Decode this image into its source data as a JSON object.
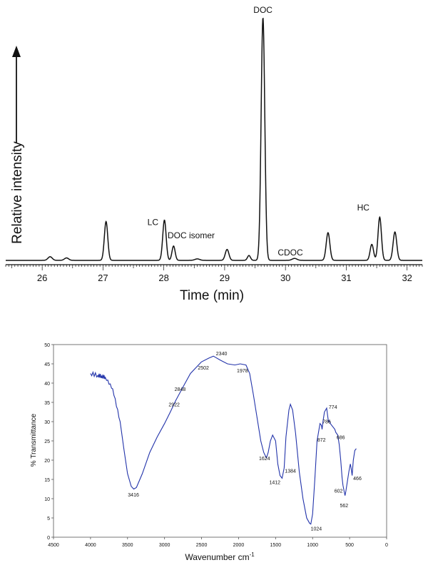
{
  "chart_data": [
    {
      "type": "line",
      "xlabel": "Time (min)",
      "ylabel": "Relative intensity",
      "xlim": [
        25.4,
        32.25
      ],
      "ylim": [
        0,
        100
      ],
      "x_ticks": [
        "26",
        "27",
        "28",
        "29",
        "30",
        "31",
        "32"
      ],
      "x_tick_values": [
        26,
        27,
        28,
        29,
        30,
        31,
        32
      ],
      "y_axis_arrow": true,
      "grid": false,
      "color": "#111111",
      "baseline": 0.9,
      "series": [
        {
          "peaks": [
            {
              "t": 26.13,
              "h": 1.5,
              "w": 0.035
            },
            {
              "t": 26.4,
              "h": 1.0,
              "w": 0.035
            },
            {
              "t": 27.05,
              "h": 16.0,
              "w": 0.028
            },
            {
              "t": 28.01,
              "h": 16.6,
              "w": 0.028
            },
            {
              "t": 28.16,
              "h": 5.9,
              "w": 0.026
            },
            {
              "t": 28.55,
              "h": 0.6,
              "w": 0.04
            },
            {
              "t": 29.04,
              "h": 4.5,
              "w": 0.03
            },
            {
              "t": 29.4,
              "h": 2.0,
              "w": 0.025
            },
            {
              "t": 29.63,
              "h": 100.0,
              "w": 0.03
            },
            {
              "t": 30.15,
              "h": 0.8,
              "w": 0.04
            },
            {
              "t": 30.7,
              "h": 11.4,
              "w": 0.03
            },
            {
              "t": 31.42,
              "h": 6.6,
              "w": 0.028
            },
            {
              "t": 31.55,
              "h": 17.8,
              "w": 0.028
            },
            {
              "t": 31.8,
              "h": 11.7,
              "w": 0.03
            }
          ]
        }
      ],
      "annotations": [
        {
          "text": "LC",
          "x": 27.82,
          "y": 15.5
        },
        {
          "text": "DOC isomer",
          "x": 28.45,
          "y": 10.0
        },
        {
          "text": "DOC",
          "x": 29.63,
          "y": 103.0
        },
        {
          "text": "CDOC",
          "x": 30.08,
          "y": 3.0
        },
        {
          "text": "HC",
          "x": 31.28,
          "y": 21.5
        }
      ]
    },
    {
      "type": "line",
      "xlabel": "Wavenumber cm",
      "xlabel_sup": "-1",
      "ylabel": "% Transmittance",
      "xlim": [
        4500,
        0
      ],
      "ylim": [
        0,
        50
      ],
      "x_ticks": [
        "4500",
        "4000",
        "3500",
        "3000",
        "2500",
        "2000",
        "1500",
        "1000",
        "500",
        "0"
      ],
      "x_tick_values": [
        4500,
        4000,
        3500,
        3000,
        2500,
        2000,
        1500,
        1000,
        500,
        0
      ],
      "y_ticks": [
        "0",
        "5",
        "10",
        "15",
        "20",
        "25",
        "30",
        "35",
        "40",
        "45",
        "50"
      ],
      "y_tick_values": [
        0,
        5,
        10,
        15,
        20,
        25,
        30,
        35,
        40,
        45,
        50
      ],
      "grid": false,
      "color": "#2233aa",
      "series": [
        {
          "x": [
            4000,
            3900,
            3850,
            3800,
            3700,
            3600,
            3550,
            3500,
            3450,
            3416,
            3380,
            3300,
            3200,
            3100,
            3000,
            2922,
            2848,
            2750,
            2650,
            2502,
            2400,
            2340,
            2250,
            2150,
            2050,
            1978,
            1900,
            1850,
            1800,
            1750,
            1700,
            1660,
            1624,
            1600,
            1570,
            1540,
            1500,
            1470,
            1440,
            1412,
            1384,
            1360,
            1320,
            1300,
            1270,
            1230,
            1180,
            1130,
            1080,
            1040,
            1024,
            1000,
            970,
            940,
            900,
            880,
            872,
            860,
            840,
            810,
            800,
            786,
            774,
            760,
            740,
            720,
            700,
            686,
            660,
            640,
            620,
            602,
            590,
            575,
            562,
            550,
            530,
            510,
            490,
            480,
            466,
            450,
            430,
            410
          ],
          "y": [
            42.5,
            42,
            41.8,
            41.5,
            38.5,
            30,
            23,
            16.5,
            13.2,
            12.5,
            12.9,
            16.5,
            22,
            26,
            29.5,
            32.5,
            35.5,
            39,
            42.5,
            45.5,
            46.5,
            47,
            46,
            45,
            44.7,
            45,
            44.7,
            42.5,
            37,
            31,
            25,
            22,
            20.6,
            22,
            25,
            26.5,
            25,
            19,
            16,
            15.3,
            18,
            26,
            33,
            34.5,
            33,
            27,
            17,
            10,
            5,
            3.6,
            3.4,
            6,
            15,
            25,
            29.5,
            29,
            28,
            30,
            32.5,
            33.5,
            32,
            30,
            30.2,
            29.5,
            29,
            28.5,
            28,
            27.2,
            26.5,
            24,
            20,
            15.5,
            13.5,
            12,
            10.8,
            12,
            14.5,
            17,
            19,
            18,
            16,
            20,
            22.5,
            23
          ]
        }
      ],
      "annotations": [
        {
          "text": "3416",
          "x": 3420,
          "y": 10.6
        },
        {
          "text": "2922",
          "x": 2870,
          "y": 34
        },
        {
          "text": "2848",
          "x": 2790,
          "y": 38
        },
        {
          "text": "2502",
          "x": 2475,
          "y": 43.5
        },
        {
          "text": "2340",
          "x": 2230,
          "y": 47.2
        },
        {
          "text": "1978",
          "x": 1948,
          "y": 42.8
        },
        {
          "text": "1624",
          "x": 1650,
          "y": 20
        },
        {
          "text": "1412",
          "x": 1510,
          "y": 13.8
        },
        {
          "text": "1384",
          "x": 1300,
          "y": 16.8
        },
        {
          "text": "1024",
          "x": 950,
          "y": 1.8
        },
        {
          "text": "872",
          "x": 880,
          "y": 24.8
        },
        {
          "text": "786",
          "x": 810,
          "y": 29.5
        },
        {
          "text": "774",
          "x": 725,
          "y": 33.3
        },
        {
          "text": "686",
          "x": 620,
          "y": 25.5
        },
        {
          "text": "602",
          "x": 650,
          "y": 11.6
        },
        {
          "text": "562",
          "x": 575,
          "y": 7.8
        },
        {
          "text": "466",
          "x": 395,
          "y": 14.8
        }
      ]
    }
  ]
}
